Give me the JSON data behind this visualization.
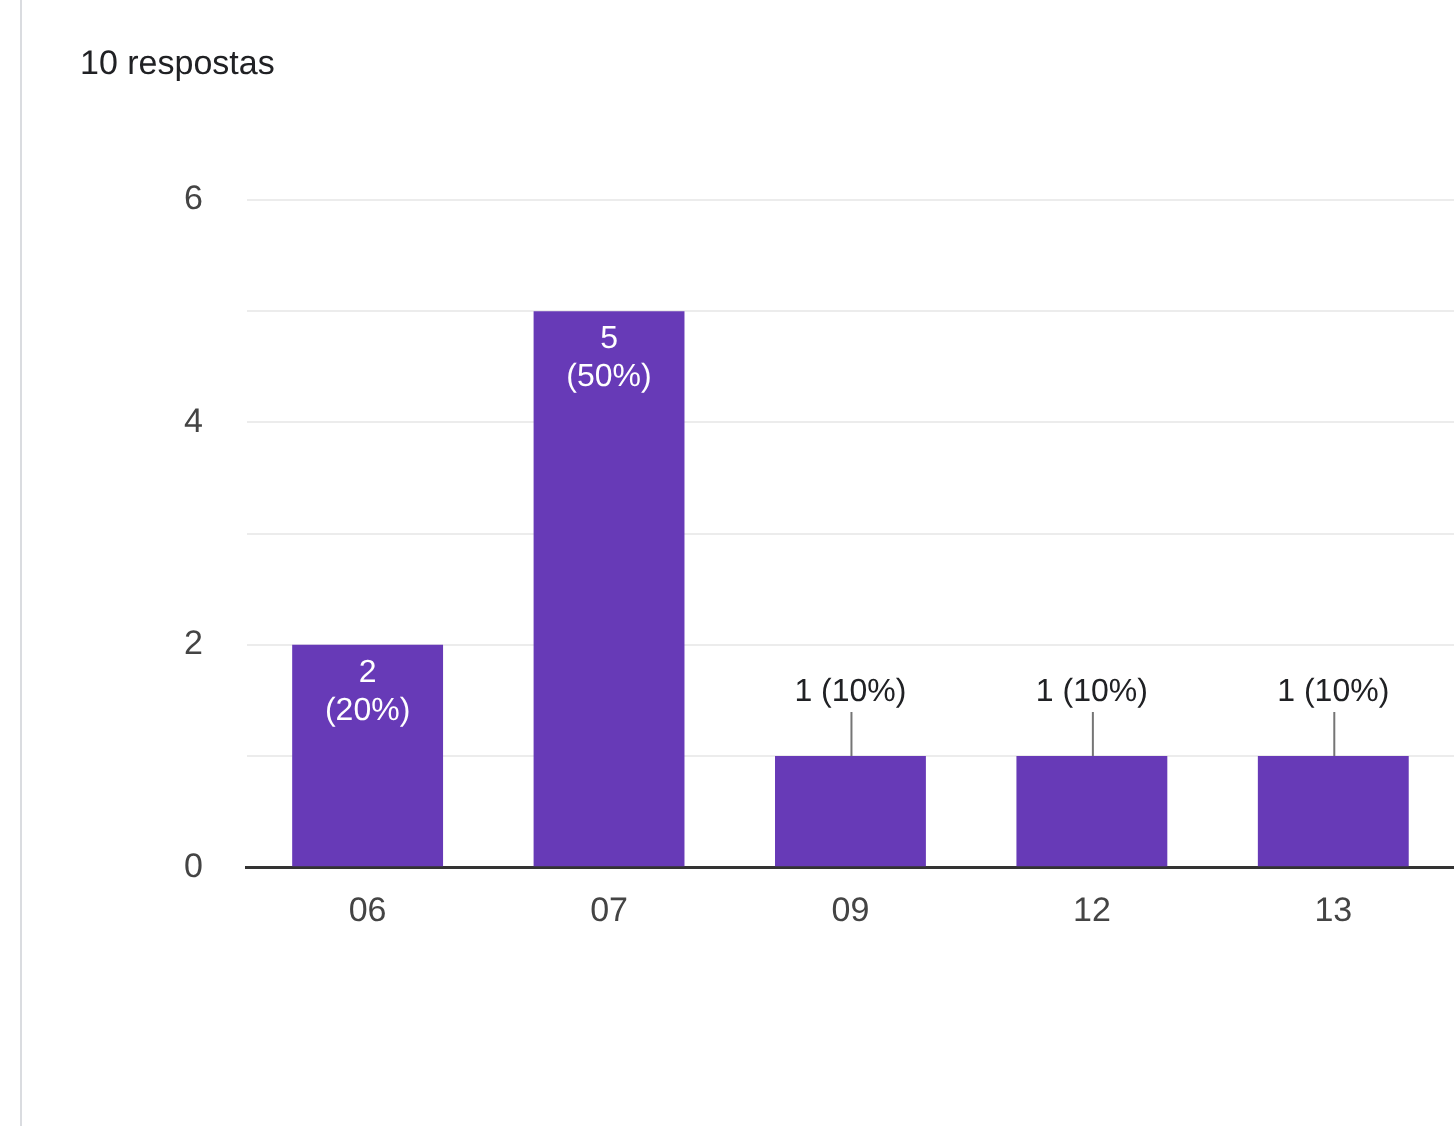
{
  "chart_data": {
    "type": "bar",
    "title": "10 respostas",
    "categories": [
      "06",
      "07",
      "09",
      "12",
      "13"
    ],
    "values": [
      2,
      5,
      1,
      1,
      1
    ],
    "value_labels": [
      "2 (20%)",
      "5 (50%)",
      "1 (10%)",
      "1 (10%)",
      "1 (10%)"
    ],
    "color": "#673ab7",
    "ylim": [
      0,
      6
    ],
    "yticks": [
      0,
      {
        "value": 1,
        "label": null
      },
      2,
      {
        "value": 3,
        "label": null
      },
      4,
      {
        "value": 5,
        "label": null
      },
      6
    ],
    "grid": "y",
    "legend": false
  }
}
